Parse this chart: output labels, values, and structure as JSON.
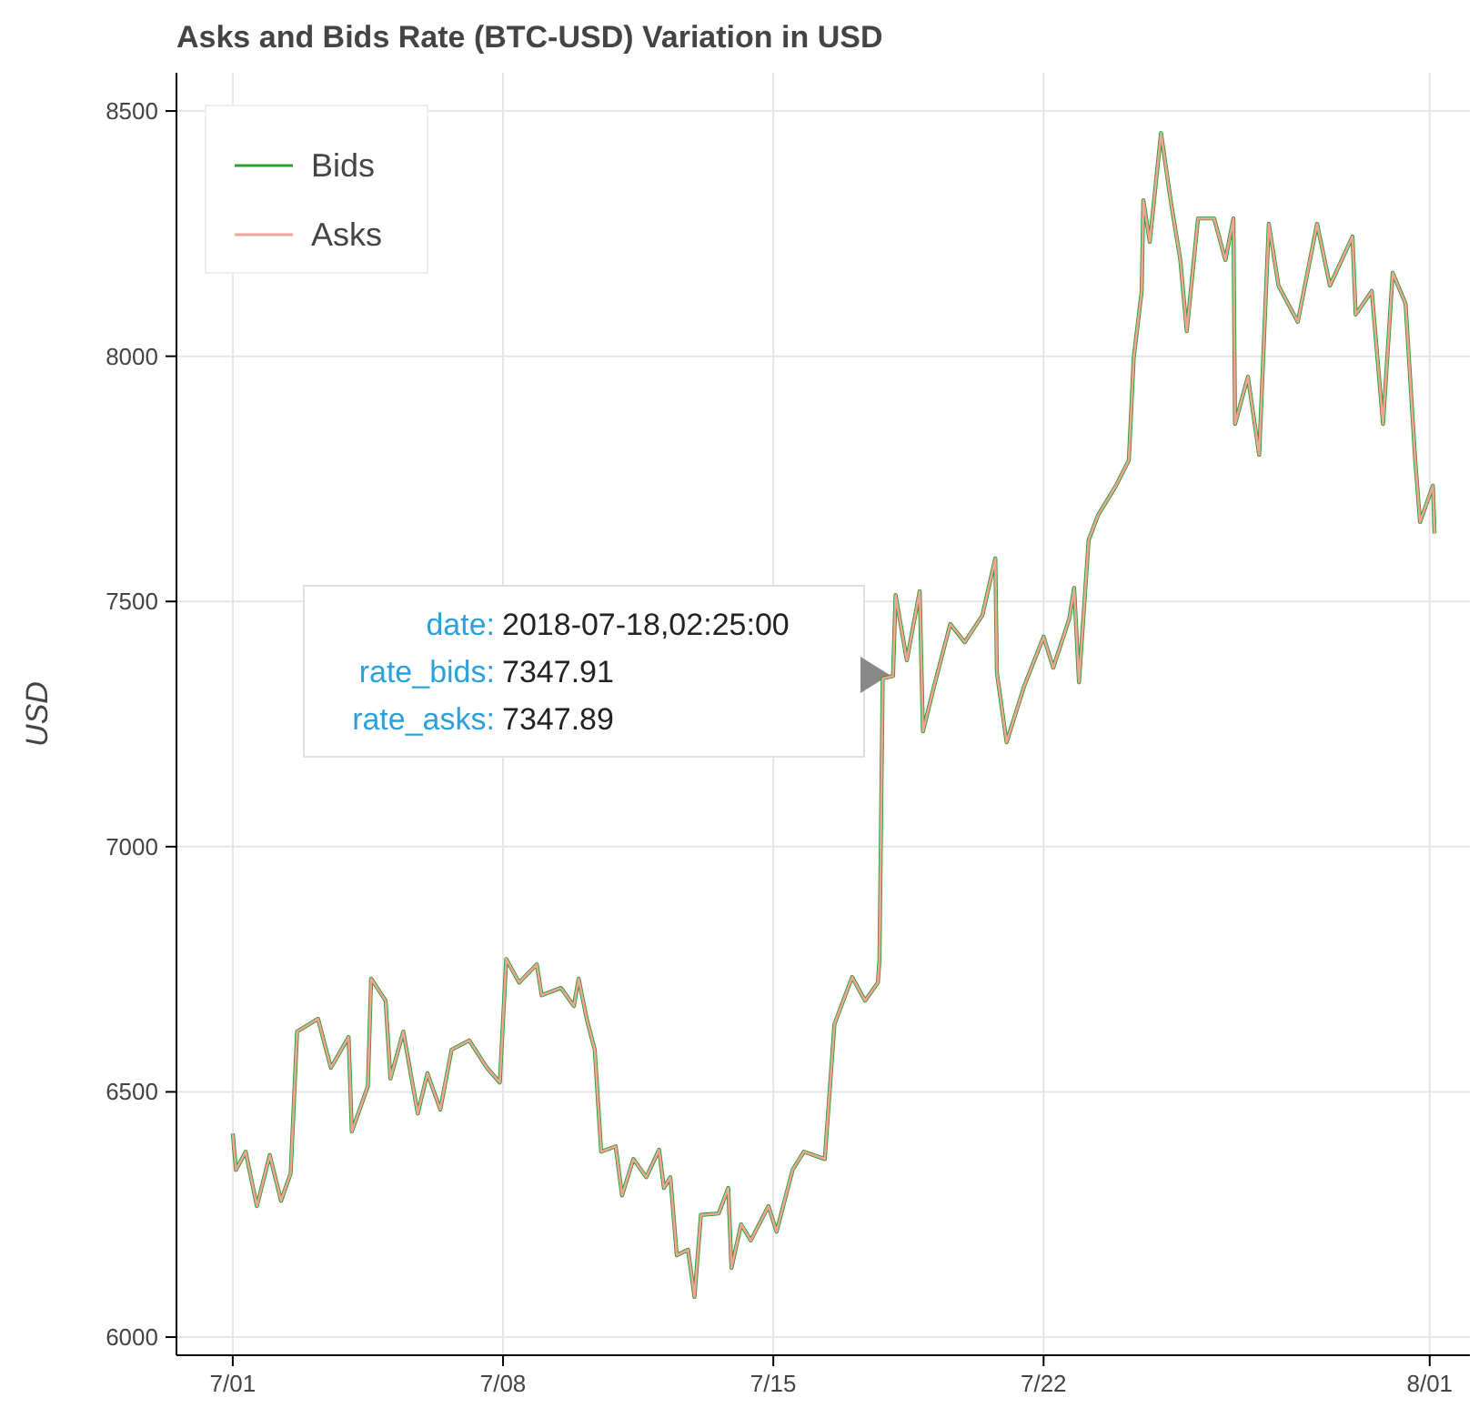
{
  "chart_data": {
    "type": "line",
    "title": "Asks and Bids Rate (BTC-USD) Variation in USD",
    "ylabel": "USD",
    "x": [
      "2018-07-01T00:00",
      "2018-07-01T02:00",
      "2018-07-01T08:00",
      "2018-07-01T15:00",
      "2018-07-01T23:00",
      "2018-07-02T06:00",
      "2018-07-02T12:00",
      "2018-07-02T16:00",
      "2018-07-03T05:00",
      "2018-07-03T13:00",
      "2018-07-04T00:00",
      "2018-07-04T02:00",
      "2018-07-04T12:00",
      "2018-07-04T14:00",
      "2018-07-04T23:00",
      "2018-07-05T02:00",
      "2018-07-05T10:00",
      "2018-07-05T19:00",
      "2018-07-06T01:00",
      "2018-07-06T09:00",
      "2018-07-06T16:00",
      "2018-07-07T03:00",
      "2018-07-07T14:00",
      "2018-07-07T22:00",
      "2018-07-08T02:00",
      "2018-07-08T10:00",
      "2018-07-08T21:00",
      "2018-07-09T00:00",
      "2018-07-09T12:00",
      "2018-07-09T20:00",
      "2018-07-09T23:00",
      "2018-07-10T04:00",
      "2018-07-10T09:00",
      "2018-07-10T13:00",
      "2018-07-10T22:00",
      "2018-07-11T02:00",
      "2018-07-11T09:00",
      "2018-07-11T17:00",
      "2018-07-12T01:00",
      "2018-07-12T04:00",
      "2018-07-12T08:00",
      "2018-07-12T12:00",
      "2018-07-12T19:00",
      "2018-07-12T23:00",
      "2018-07-13T03:00",
      "2018-07-13T14:00",
      "2018-07-13T20:00",
      "2018-07-13T22:00",
      "2018-07-14T04:00",
      "2018-07-14T10:00",
      "2018-07-14T21:00",
      "2018-07-15T02:00",
      "2018-07-15T12:00",
      "2018-07-15T19:00",
      "2018-07-16T08:00",
      "2018-07-16T14:00",
      "2018-07-17T01:00",
      "2018-07-17T09:00",
      "2018-07-17T17:00",
      "2018-07-17T18:00",
      "2018-07-17T20:00",
      "2018-07-18T02:25",
      "2018-07-18T04:00",
      "2018-07-18T11:00",
      "2018-07-18T19:00",
      "2018-07-18T21:00",
      "2018-07-19T04:00",
      "2018-07-19T14:00",
      "2018-07-19T23:00",
      "2018-07-20T10:00",
      "2018-07-20T18:00",
      "2018-07-20T19:00",
      "2018-07-21T01:00",
      "2018-07-21T12:00",
      "2018-07-22T00:00",
      "2018-07-22T06:00",
      "2018-07-22T16:00",
      "2018-07-22T19:00",
      "2018-07-22T22:00",
      "2018-07-23T04:00",
      "2018-07-23T10:00",
      "2018-07-23T21:00",
      "2018-07-24T05:00",
      "2018-07-24T08:00",
      "2018-07-24T13:00",
      "2018-07-24T14:00",
      "2018-07-24T18:00",
      "2018-07-25T01:00",
      "2018-07-25T07:00",
      "2018-07-25T13:00",
      "2018-07-25T17:00",
      "2018-07-26T00:00",
      "2018-07-26T10:00",
      "2018-07-26T17:00",
      "2018-07-26T22:00",
      "2018-07-26T23:00",
      "2018-07-27T07:00",
      "2018-07-27T14:00",
      "2018-07-27T20:00",
      "2018-07-28T02:00",
      "2018-07-28T14:00",
      "2018-07-29T02:00",
      "2018-07-29T10:00",
      "2018-07-30T00:00",
      "2018-07-30T02:00",
      "2018-07-30T12:00",
      "2018-07-30T19:00",
      "2018-07-31T01:00",
      "2018-07-31T09:00",
      "2018-07-31T15:00",
      "2018-07-31T18:00",
      "2018-08-01T02:00",
      "2018-08-01T03:00"
    ],
    "series": [
      {
        "name": "Bids",
        "color": "#2ca02c",
        "values": [
          6415,
          6341,
          6378,
          6267,
          6371,
          6278,
          6334,
          6623,
          6649,
          6549,
          6612,
          6419,
          6512,
          6731,
          6686,
          6527,
          6623,
          6456,
          6538,
          6464,
          6586,
          6605,
          6549,
          6519,
          6771,
          6723,
          6760,
          6697,
          6712,
          6675,
          6731,
          6649,
          6586,
          6378,
          6389,
          6289,
          6363,
          6326,
          6382,
          6304,
          6326,
          6167,
          6178,
          6082,
          6249,
          6252,
          6304,
          6141,
          6230,
          6197,
          6267,
          6215,
          6341,
          6378,
          6363,
          6638,
          6734,
          6686,
          6723,
          6771,
          7343,
          7348,
          7513,
          7380,
          7521,
          7235,
          7328,
          7454,
          7417,
          7472,
          7588,
          7354,
          7213,
          7328,
          7428,
          7365,
          7465,
          7528,
          7335,
          7625,
          7677,
          7736,
          7788,
          7996,
          8133,
          8318,
          8233,
          8455,
          8318,
          8196,
          8051,
          8281,
          8281,
          8196,
          8281,
          7862,
          7958,
          7799,
          8270,
          8144,
          8070,
          8270,
          8144,
          8244,
          8085,
          8133,
          7862,
          8170,
          8107,
          7788,
          7662,
          7736,
          7639
        ]
      },
      {
        "name": "Asks",
        "color": "#f4a19a",
        "values": [
          6415,
          6341,
          6378,
          6267,
          6371,
          6278,
          6334,
          6623,
          6649,
          6549,
          6612,
          6419,
          6512,
          6731,
          6686,
          6527,
          6623,
          6456,
          6538,
          6464,
          6586,
          6605,
          6549,
          6519,
          6771,
          6723,
          6760,
          6697,
          6712,
          6675,
          6731,
          6649,
          6586,
          6378,
          6389,
          6289,
          6363,
          6326,
          6382,
          6304,
          6326,
          6167,
          6178,
          6082,
          6249,
          6252,
          6304,
          6141,
          6230,
          6197,
          6267,
          6215,
          6341,
          6378,
          6363,
          6638,
          6734,
          6686,
          6723,
          6771,
          7343,
          7348,
          7513,
          7380,
          7521,
          7235,
          7328,
          7454,
          7417,
          7472,
          7588,
          7354,
          7213,
          7328,
          7428,
          7365,
          7465,
          7528,
          7335,
          7625,
          7677,
          7736,
          7788,
          7996,
          8133,
          8318,
          8233,
          8455,
          8318,
          8196,
          8051,
          8281,
          8281,
          8196,
          8281,
          7862,
          7958,
          7799,
          8270,
          8144,
          8070,
          8270,
          8144,
          8244,
          8085,
          8133,
          7862,
          8170,
          8107,
          7788,
          7662,
          7736,
          7639
        ]
      }
    ],
    "xlim": [
      "2018-06-29T13:00",
      "2018-08-02T01:00"
    ],
    "xticks": [
      {
        "value": "2018-07-01",
        "label": "7/01"
      },
      {
        "value": "2018-07-08",
        "label": "7/08"
      },
      {
        "value": "2018-07-15",
        "label": "7/15"
      },
      {
        "value": "2018-07-22",
        "label": "7/22"
      },
      {
        "value": "2018-08-01",
        "label": "8/01"
      }
    ],
    "ylim": [
      5963,
      8578
    ],
    "yticks": [
      6000,
      6500,
      7000,
      7500,
      8000,
      8500
    ],
    "grid": true,
    "legend": "top left",
    "marker": "none",
    "line_style": "solid",
    "annotations": [
      "date: 2018-07-18,02:25:00\nrate_bids: 7347.91\nrate_asks: 7347.89"
    ]
  }
}
